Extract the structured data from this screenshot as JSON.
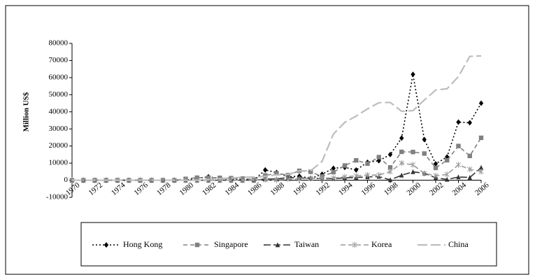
{
  "chart_data": {
    "type": "line",
    "y_label": "Million US$",
    "x": [
      1970,
      1971,
      1972,
      1973,
      1974,
      1975,
      1976,
      1977,
      1978,
      1979,
      1980,
      1981,
      1982,
      1983,
      1984,
      1985,
      1986,
      1987,
      1988,
      1989,
      1990,
      1991,
      1992,
      1993,
      1994,
      1995,
      1996,
      1997,
      1998,
      1999,
      2000,
      2001,
      2002,
      2003,
      2004,
      2005,
      2006
    ],
    "xlim": [
      1970,
      2006
    ],
    "xticks": [
      1970,
      1972,
      1974,
      1976,
      1978,
      1980,
      1982,
      1984,
      1986,
      1988,
      1990,
      1992,
      1994,
      1996,
      1998,
      2000,
      2002,
      2004,
      2006
    ],
    "ylim": [
      -10000,
      80000
    ],
    "yticks": [
      -10000,
      0,
      10000,
      20000,
      30000,
      40000,
      50000,
      60000,
      70000,
      80000
    ],
    "grid": false,
    "legend": "bottom",
    "series": [
      {
        "name": "Hong Kong",
        "color": "#000000",
        "marker": "diamond",
        "dash": "2,3",
        "values": [
          0,
          0,
          0,
          0,
          0,
          0,
          0,
          0,
          0,
          0,
          100,
          1000,
          2000,
          1000,
          500,
          700,
          0,
          6000,
          4500,
          2000,
          2400,
          1000,
          3500,
          7000,
          7500,
          6000,
          10500,
          11400,
          15000,
          24600,
          61900,
          23800,
          9600,
          13600,
          34000,
          33600,
          45000
        ]
      },
      {
        "name": "Singapore",
        "color": "#808080",
        "marker": "square",
        "dash": "6,4",
        "values": [
          0,
          0,
          0,
          0,
          0,
          0,
          0,
          0,
          0,
          0,
          800,
          1500,
          1500,
          1400,
          1200,
          1000,
          500,
          2800,
          4000,
          3000,
          5500,
          4900,
          2200,
          4700,
          8600,
          11600,
          9700,
          13500,
          7500,
          16600,
          16500,
          15600,
          7200,
          11700,
          20000,
          14200,
          24800
        ]
      },
      {
        "name": "Taiwan",
        "color": "#333333",
        "marker": "triangle",
        "dash": "10,4",
        "values": [
          0,
          0,
          0,
          0,
          0,
          0,
          0,
          0,
          0,
          0,
          0,
          0,
          0,
          0,
          0,
          0,
          0,
          700,
          700,
          1600,
          1300,
          1300,
          900,
          900,
          1400,
          1600,
          1900,
          2200,
          200,
          2900,
          4900,
          4100,
          1400,
          450,
          1900,
          1600,
          7400
        ]
      },
      {
        "name": "Korea",
        "color": "#9a9a9a",
        "marker": "star",
        "dash": "7,4",
        "values": [
          0,
          0,
          0,
          0,
          0,
          0,
          0,
          0,
          0,
          0,
          0,
          0,
          0,
          0,
          0,
          0,
          200,
          200,
          200,
          600,
          800,
          1100,
          1200,
          1300,
          2000,
          2500,
          3000,
          3000,
          5000,
          10000,
          9000,
          4000,
          2600,
          3400,
          9000,
          6400,
          5000
        ]
      },
      {
        "name": "China",
        "color": "#bdbdbd",
        "dash": "14,5",
        "values": [
          0,
          0,
          0,
          0,
          0,
          0,
          0,
          0,
          0,
          0,
          0,
          0,
          400,
          900,
          1300,
          1700,
          1900,
          2300,
          3200,
          3400,
          5500,
          5500,
          11000,
          27000,
          33800,
          37500,
          41700,
          45300,
          45500,
          40300,
          40700,
          46900,
          52700,
          53500,
          60600,
          72400,
          72700
        ]
      }
    ]
  }
}
